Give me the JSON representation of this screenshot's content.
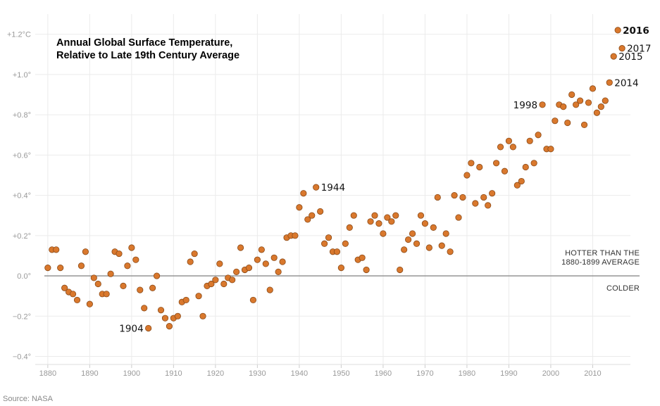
{
  "chart_data": {
    "type": "scatter",
    "title": [
      "Annual Global Surface Temperature,",
      "Relative to Late 19th Century Average"
    ],
    "source": "Source: NASA",
    "x_range": [
      1877,
      2019
    ],
    "y_range": [
      -0.44,
      1.3
    ],
    "x_ticks": [
      {
        "value": 1880,
        "label": "1880"
      },
      {
        "value": 1890,
        "label": "1890"
      },
      {
        "value": 1900,
        "label": "1900"
      },
      {
        "value": 1910,
        "label": "1910"
      },
      {
        "value": 1920,
        "label": "1920"
      },
      {
        "value": 1930,
        "label": "1930"
      },
      {
        "value": 1940,
        "label": "1940"
      },
      {
        "value": 1950,
        "label": "1950"
      },
      {
        "value": 1960,
        "label": "1960"
      },
      {
        "value": 1970,
        "label": "1970"
      },
      {
        "value": 1980,
        "label": "1980"
      },
      {
        "value": 1990,
        "label": "1990"
      },
      {
        "value": 2000,
        "label": "2000"
      },
      {
        "value": 2010,
        "label": "2010"
      }
    ],
    "y_ticks": [
      {
        "value": 1.2,
        "label": "+1.2°C"
      },
      {
        "value": 1.0,
        "label": "+1.0°"
      },
      {
        "value": 0.8,
        "label": "+0.8°"
      },
      {
        "value": 0.6,
        "label": "+0.6°"
      },
      {
        "value": 0.4,
        "label": "+0.4°"
      },
      {
        "value": 0.2,
        "label": "+0.2°"
      },
      {
        "value": 0.0,
        "label": "0.0°"
      },
      {
        "value": -0.2,
        "label": "−0.2°"
      },
      {
        "value": -0.4,
        "label": "−0.4°"
      }
    ],
    "zero_line_labels": {
      "above": [
        "HOTTER THAN THE",
        "1880-1899 AVERAGE"
      ],
      "below": "COLDER"
    },
    "point_color": "#d9782d",
    "point_stroke": "#8a4a18",
    "points": [
      [
        1880,
        0.04
      ],
      [
        1881,
        0.13
      ],
      [
        1882,
        0.13
      ],
      [
        1883,
        0.04
      ],
      [
        1884,
        -0.06
      ],
      [
        1885,
        -0.08
      ],
      [
        1886,
        -0.09
      ],
      [
        1887,
        -0.12
      ],
      [
        1888,
        0.05
      ],
      [
        1889,
        0.12
      ],
      [
        1890,
        -0.14
      ],
      [
        1891,
        -0.01
      ],
      [
        1892,
        -0.04
      ],
      [
        1893,
        -0.09
      ],
      [
        1894,
        -0.09
      ],
      [
        1895,
        0.01
      ],
      [
        1896,
        0.12
      ],
      [
        1897,
        0.11
      ],
      [
        1898,
        -0.05
      ],
      [
        1899,
        0.05
      ],
      [
        1900,
        0.14
      ],
      [
        1901,
        0.08
      ],
      [
        1902,
        -0.07
      ],
      [
        1903,
        -0.16
      ],
      [
        1904,
        -0.26
      ],
      [
        1905,
        -0.06
      ],
      [
        1906,
        0.0
      ],
      [
        1907,
        -0.17
      ],
      [
        1908,
        -0.21
      ],
      [
        1909,
        -0.25
      ],
      [
        1910,
        -0.21
      ],
      [
        1911,
        -0.2
      ],
      [
        1912,
        -0.13
      ],
      [
        1913,
        -0.12
      ],
      [
        1914,
        0.07
      ],
      [
        1915,
        0.11
      ],
      [
        1916,
        -0.1
      ],
      [
        1917,
        -0.2
      ],
      [
        1918,
        -0.05
      ],
      [
        1919,
        -0.04
      ],
      [
        1920,
        -0.02
      ],
      [
        1921,
        0.06
      ],
      [
        1922,
        -0.04
      ],
      [
        1923,
        -0.01
      ],
      [
        1924,
        -0.02
      ],
      [
        1925,
        0.02
      ],
      [
        1926,
        0.14
      ],
      [
        1927,
        0.03
      ],
      [
        1928,
        0.04
      ],
      [
        1929,
        -0.12
      ],
      [
        1930,
        0.08
      ],
      [
        1931,
        0.13
      ],
      [
        1932,
        0.06
      ],
      [
        1933,
        -0.07
      ],
      [
        1934,
        0.09
      ],
      [
        1935,
        0.02
      ],
      [
        1936,
        0.07
      ],
      [
        1937,
        0.19
      ],
      [
        1938,
        0.2
      ],
      [
        1939,
        0.2
      ],
      [
        1940,
        0.34
      ],
      [
        1941,
        0.41
      ],
      [
        1942,
        0.28
      ],
      [
        1943,
        0.3
      ],
      [
        1944,
        0.44
      ],
      [
        1945,
        0.32
      ],
      [
        1946,
        0.16
      ],
      [
        1947,
        0.19
      ],
      [
        1948,
        0.12
      ],
      [
        1949,
        0.12
      ],
      [
        1950,
        0.04
      ],
      [
        1951,
        0.16
      ],
      [
        1952,
        0.24
      ],
      [
        1953,
        0.3
      ],
      [
        1954,
        0.08
      ],
      [
        1955,
        0.09
      ],
      [
        1956,
        0.03
      ],
      [
        1957,
        0.27
      ],
      [
        1958,
        0.3
      ],
      [
        1959,
        0.26
      ],
      [
        1960,
        0.21
      ],
      [
        1961,
        0.29
      ],
      [
        1962,
        0.27
      ],
      [
        1963,
        0.3
      ],
      [
        1964,
        0.03
      ],
      [
        1965,
        0.13
      ],
      [
        1966,
        0.18
      ],
      [
        1967,
        0.21
      ],
      [
        1968,
        0.16
      ],
      [
        1969,
        0.3
      ],
      [
        1970,
        0.26
      ],
      [
        1971,
        0.14
      ],
      [
        1972,
        0.24
      ],
      [
        1973,
        0.39
      ],
      [
        1974,
        0.15
      ],
      [
        1975,
        0.21
      ],
      [
        1976,
        0.12
      ],
      [
        1977,
        0.4
      ],
      [
        1978,
        0.29
      ],
      [
        1979,
        0.39
      ],
      [
        1980,
        0.5
      ],
      [
        1981,
        0.56
      ],
      [
        1982,
        0.36
      ],
      [
        1983,
        0.54
      ],
      [
        1984,
        0.39
      ],
      [
        1985,
        0.35
      ],
      [
        1986,
        0.41
      ],
      [
        1987,
        0.56
      ],
      [
        1988,
        0.64
      ],
      [
        1989,
        0.52
      ],
      [
        1990,
        0.67
      ],
      [
        1991,
        0.64
      ],
      [
        1992,
        0.45
      ],
      [
        1993,
        0.47
      ],
      [
        1994,
        0.54
      ],
      [
        1995,
        0.67
      ],
      [
        1996,
        0.56
      ],
      [
        1997,
        0.7
      ],
      [
        1998,
        0.85
      ],
      [
        1999,
        0.63
      ],
      [
        2000,
        0.63
      ],
      [
        2001,
        0.77
      ],
      [
        2002,
        0.85
      ],
      [
        2003,
        0.84
      ],
      [
        2004,
        0.76
      ],
      [
        2005,
        0.9
      ],
      [
        2006,
        0.85
      ],
      [
        2007,
        0.87
      ],
      [
        2008,
        0.75
      ],
      [
        2009,
        0.86
      ],
      [
        2010,
        0.93
      ],
      [
        2011,
        0.81
      ],
      [
        2012,
        0.84
      ],
      [
        2013,
        0.87
      ],
      [
        2014,
        0.96
      ],
      [
        2015,
        1.09
      ],
      [
        2016,
        1.22
      ],
      [
        2017,
        1.13
      ]
    ],
    "annotations": [
      {
        "year": 1904,
        "text": "1904",
        "side": "left",
        "bold": false
      },
      {
        "year": 1944,
        "text": "1944",
        "side": "right",
        "bold": false
      },
      {
        "year": 1998,
        "text": "1998",
        "side": "left",
        "bold": false
      },
      {
        "year": 2014,
        "text": "2014",
        "side": "right",
        "bold": false
      },
      {
        "year": 2015,
        "text": "2015",
        "side": "right",
        "bold": false
      },
      {
        "year": 2016,
        "text": "2016",
        "side": "right",
        "bold": true
      },
      {
        "year": 2017,
        "text": "2017",
        "side": "right",
        "bold": false
      }
    ]
  }
}
